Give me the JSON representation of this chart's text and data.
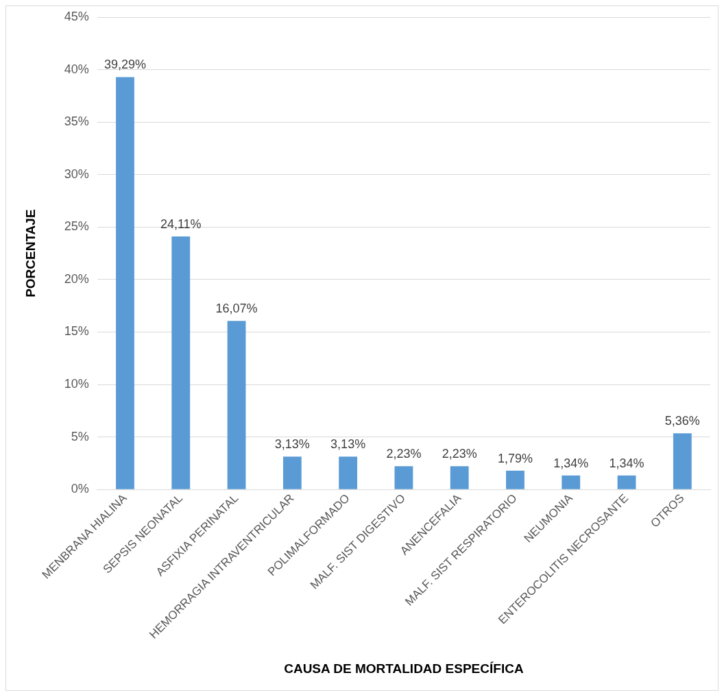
{
  "chart_data": {
    "type": "bar",
    "xlabel": "CAUSA DE MORTALIDAD ESPECÍFICA",
    "ylabel": "PORCENTAJE",
    "categories": [
      "MENBRANA HIALINA",
      "SEPSIS NEONATAL",
      "ASFIXIA PERINATAL",
      "HEMORRAGIA INTRAVENTRICULAR",
      "POLIMALFORMADO",
      "MALF. SIST DIGESTIVO",
      "ANENCEFALIA",
      "MALF. SIST RESPIRATORIO",
      "NEUMONIA",
      "ENTEROCOLITIS NECROSANTE",
      "OTROS"
    ],
    "values": [
      39.29,
      24.11,
      16.07,
      3.13,
      3.13,
      2.23,
      2.23,
      1.79,
      1.34,
      1.34,
      5.36
    ],
    "value_labels": [
      "39,29%",
      "24,11%",
      "16,07%",
      "3,13%",
      "3,13%",
      "2,23%",
      "2,23%",
      "1,79%",
      "1,34%",
      "1,34%",
      "5,36%"
    ],
    "color": "#5b9bd5",
    "ylim": [
      0,
      45
    ],
    "yticks": [
      {
        "value": 0,
        "label": "0%"
      },
      {
        "value": 5,
        "label": "5%"
      },
      {
        "value": 10,
        "label": "10%"
      },
      {
        "value": 15,
        "label": "15%"
      },
      {
        "value": 20,
        "label": "20%"
      },
      {
        "value": 25,
        "label": "25%"
      },
      {
        "value": 30,
        "label": "30%"
      },
      {
        "value": 35,
        "label": "35%"
      },
      {
        "value": 40,
        "label": "40%"
      },
      {
        "value": 45,
        "label": "45%"
      }
    ],
    "grid": "y"
  }
}
